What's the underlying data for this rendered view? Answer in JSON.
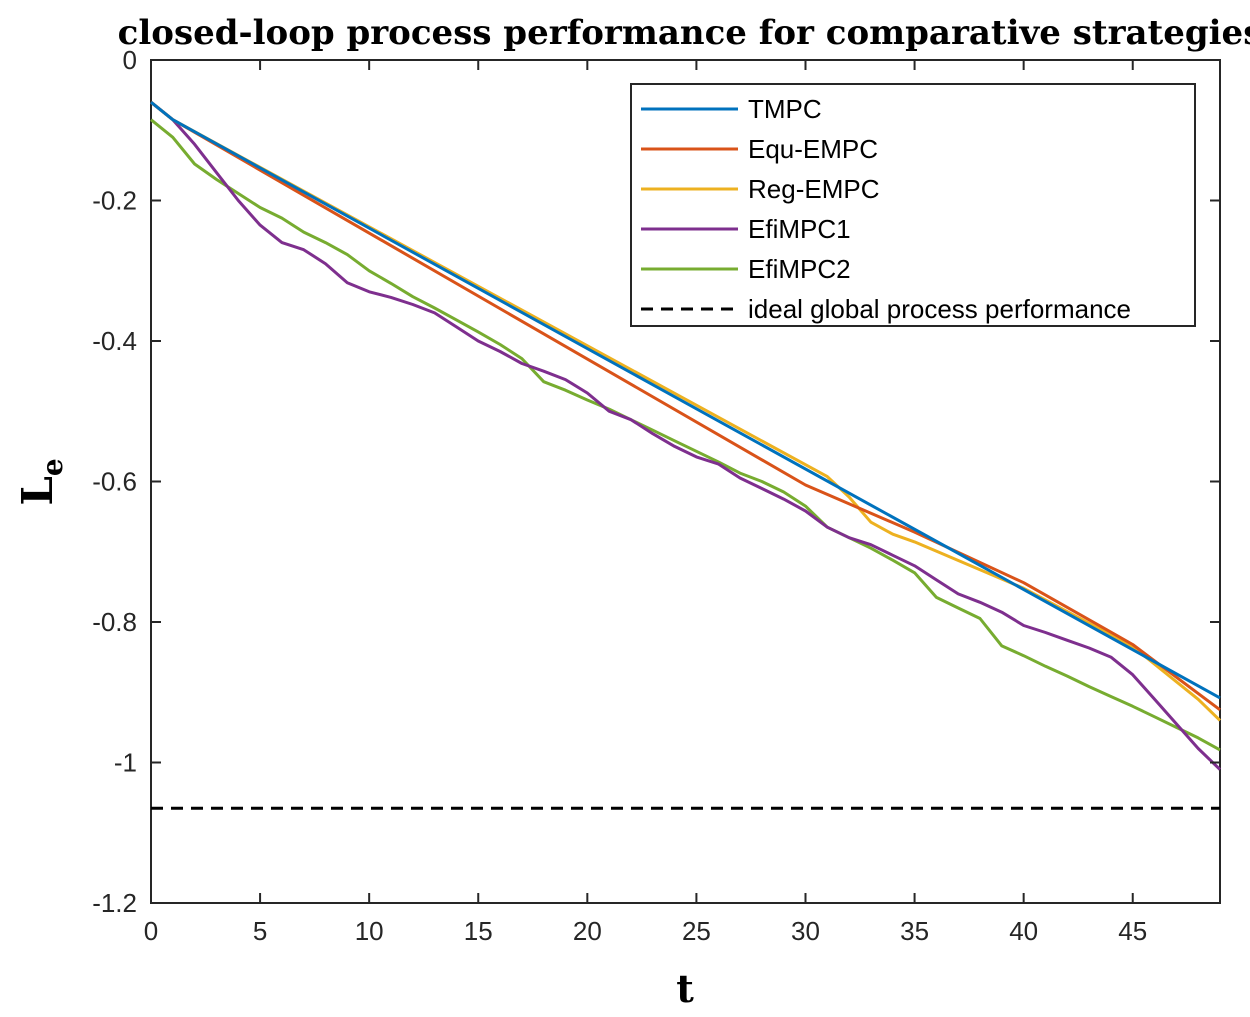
{
  "chart_data": {
    "type": "line",
    "title": "closed-loop process performance for comparative strategies",
    "xlabel": "t",
    "ylabel": "L",
    "ylabel_subscript": "e",
    "xlim": [
      0,
      49
    ],
    "ylim": [
      -1.2,
      0
    ],
    "xticks": [
      0,
      5,
      10,
      15,
      20,
      25,
      30,
      35,
      40,
      45
    ],
    "xtick_labels": [
      "0",
      "5",
      "10",
      "15",
      "20",
      "25",
      "30",
      "35",
      "40",
      "45"
    ],
    "yticks": [
      0,
      -0.2,
      -0.4,
      -0.6,
      -0.8,
      -1,
      -1.2
    ],
    "ytick_labels": [
      "0",
      "-0.2",
      "-0.4",
      "-0.6",
      "-0.8",
      "-1",
      "-1.2"
    ],
    "grid": false,
    "legend_position": "top-right",
    "series": [
      {
        "name": "TMPC",
        "color": "#0072BD",
        "x": [
          0,
          1,
          49
        ],
        "y": [
          -0.06,
          -0.085,
          -0.908
        ]
      },
      {
        "name": "Equ-EMPC",
        "color": "#D95319",
        "x": [
          0,
          1,
          30,
          35,
          40,
          45,
          49
        ],
        "y": [
          -0.06,
          -0.085,
          -0.605,
          -0.672,
          -0.744,
          -0.832,
          -0.925
        ]
      },
      {
        "name": "Reg-EMPC",
        "color": "#EDB120",
        "x": [
          0,
          1,
          31,
          32,
          33,
          34,
          35,
          40,
          45,
          48,
          49
        ],
        "y": [
          -0.06,
          -0.085,
          -0.593,
          -0.622,
          -0.658,
          -0.675,
          -0.686,
          -0.752,
          -0.835,
          -0.91,
          -0.94
        ]
      },
      {
        "name": "EfiMPC1",
        "color": "#7E2F8E",
        "x": [
          0,
          1,
          2,
          3,
          4,
          5,
          6,
          7,
          8,
          9,
          10,
          11,
          12,
          13,
          14,
          15,
          16,
          17,
          18,
          19,
          20,
          21,
          22,
          23,
          24,
          25,
          26,
          27,
          28,
          29,
          30,
          31,
          32,
          33,
          34,
          35,
          36,
          37,
          38,
          39,
          40,
          41,
          42,
          43,
          44,
          45,
          46,
          47,
          48,
          49
        ],
        "y": [
          -0.06,
          -0.085,
          -0.12,
          -0.16,
          -0.2,
          -0.235,
          -0.26,
          -0.27,
          -0.29,
          -0.317,
          -0.33,
          -0.338,
          -0.348,
          -0.36,
          -0.38,
          -0.4,
          -0.415,
          -0.432,
          -0.443,
          -0.455,
          -0.474,
          -0.5,
          -0.512,
          -0.532,
          -0.55,
          -0.565,
          -0.575,
          -0.595,
          -0.61,
          -0.625,
          -0.642,
          -0.665,
          -0.68,
          -0.69,
          -0.705,
          -0.72,
          -0.74,
          -0.76,
          -0.772,
          -0.786,
          -0.805,
          -0.815,
          -0.826,
          -0.837,
          -0.85,
          -0.875,
          -0.91,
          -0.945,
          -0.98,
          -1.01
        ]
      },
      {
        "name": "EfiMPC2",
        "color": "#77AC30",
        "x": [
          0,
          1,
          2,
          3,
          4,
          5,
          6,
          7,
          8,
          9,
          10,
          11,
          12,
          13,
          14,
          15,
          16,
          17,
          18,
          19,
          20,
          21,
          22,
          23,
          24,
          25,
          26,
          27,
          28,
          29,
          30,
          31,
          32,
          33,
          34,
          35,
          36,
          37,
          38,
          39,
          40,
          41,
          42,
          43,
          44,
          45,
          46,
          47,
          48,
          49
        ],
        "y": [
          -0.085,
          -0.11,
          -0.148,
          -0.17,
          -0.19,
          -0.21,
          -0.225,
          -0.245,
          -0.26,
          -0.277,
          -0.3,
          -0.318,
          -0.337,
          -0.353,
          -0.37,
          -0.387,
          -0.405,
          -0.425,
          -0.458,
          -0.47,
          -0.484,
          -0.497,
          -0.512,
          -0.527,
          -0.542,
          -0.557,
          -0.572,
          -0.588,
          -0.6,
          -0.615,
          -0.635,
          -0.665,
          -0.68,
          -0.695,
          -0.712,
          -0.73,
          -0.765,
          -0.78,
          -0.795,
          -0.834,
          -0.848,
          -0.863,
          -0.877,
          -0.892,
          -0.906,
          -0.92,
          -0.935,
          -0.95,
          -0.965,
          -0.982
        ]
      },
      {
        "name": "ideal global process performance",
        "color": "#000000",
        "style": "dashed",
        "x": [
          0,
          49
        ],
        "y": [
          -1.065,
          -1.065
        ]
      }
    ]
  }
}
